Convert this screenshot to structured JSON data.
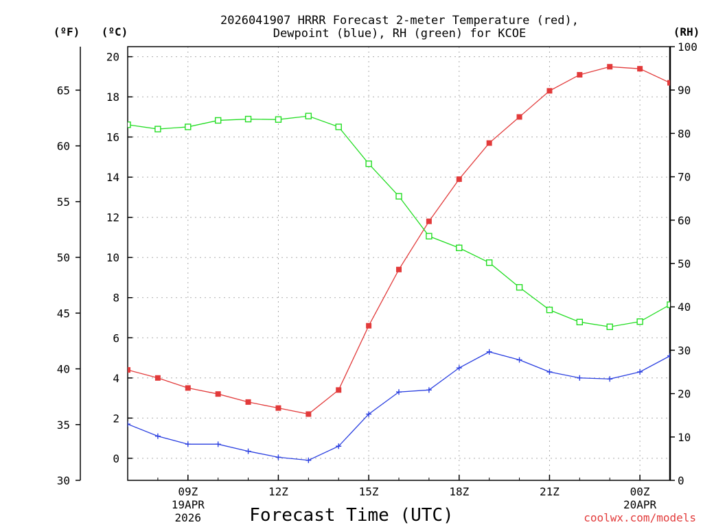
{
  "chart_data": {
    "type": "line",
    "title_line1": "2026041907 HRRR Forecast 2-meter Temperature (red),",
    "title_line2": "Dewpoint (blue), RH (green) for KCOE",
    "xlabel": "Forecast Time (UTC)",
    "credit": "coolwx.com/models",
    "unit_f": "(ºF)",
    "unit_c": "(ºC)",
    "unit_rh": "(RH)",
    "x_hours": [
      7,
      8,
      9,
      10,
      11,
      12,
      13,
      14,
      15,
      16,
      17,
      18,
      19,
      20,
      21,
      22,
      23,
      24,
      25
    ],
    "xlim": [
      7,
      25
    ],
    "ylim_c": [
      -1.1,
      20.5
    ],
    "ylim_f": [
      30,
      68.9
    ],
    "ylim_rh": [
      0,
      100
    ],
    "x_ticks": [
      {
        "hour": 9,
        "label": "09Z",
        "sub1": "19APR",
        "sub2": "2026"
      },
      {
        "hour": 12,
        "label": "12Z",
        "sub1": "",
        "sub2": ""
      },
      {
        "hour": 15,
        "label": "15Z",
        "sub1": "",
        "sub2": ""
      },
      {
        "hour": 18,
        "label": "18Z",
        "sub1": "",
        "sub2": ""
      },
      {
        "hour": 21,
        "label": "21Z",
        "sub1": "",
        "sub2": ""
      },
      {
        "hour": 24,
        "label": "00Z",
        "sub1": "20APR",
        "sub2": ""
      }
    ],
    "y_ticks_c": [
      "0",
      "2",
      "4",
      "6",
      "8",
      "10",
      "12",
      "14",
      "16",
      "18",
      "20"
    ],
    "y_ticks_f": [
      "30",
      "35",
      "40",
      "45",
      "50",
      "55",
      "60",
      "65"
    ],
    "y_ticks_rh": [
      "0",
      "10",
      "20",
      "30",
      "40",
      "50",
      "60",
      "70",
      "80",
      "90",
      "100"
    ],
    "grid": true,
    "series": [
      {
        "name": "Temperature",
        "unit": "C",
        "color": "#e23a3a",
        "marker": "filled-square",
        "values": [
          4.4,
          4.0,
          3.5,
          3.2,
          2.8,
          2.5,
          2.2,
          3.4,
          6.6,
          9.4,
          11.8,
          13.9,
          15.7,
          17.0,
          18.3,
          19.1,
          19.5,
          19.4,
          18.7
        ]
      },
      {
        "name": "Dewpoint",
        "unit": "C",
        "color": "#2a3fe0",
        "marker": "plus",
        "values": [
          1.7,
          1.1,
          0.7,
          0.7,
          0.35,
          0.05,
          -0.1,
          0.6,
          2.2,
          3.3,
          3.4,
          4.5,
          5.3,
          4.9,
          4.3,
          4.0,
          3.95,
          4.3,
          5.1
        ]
      },
      {
        "name": "RH",
        "unit": "%",
        "color": "#22dd22",
        "marker": "open-square",
        "values": [
          82,
          81,
          81.5,
          83,
          83.3,
          83.2,
          84,
          81.5,
          73,
          65.5,
          56.3,
          53.6,
          50.2,
          44.5,
          39.3,
          36.5,
          35.4,
          36.6,
          40.5
        ]
      }
    ]
  }
}
